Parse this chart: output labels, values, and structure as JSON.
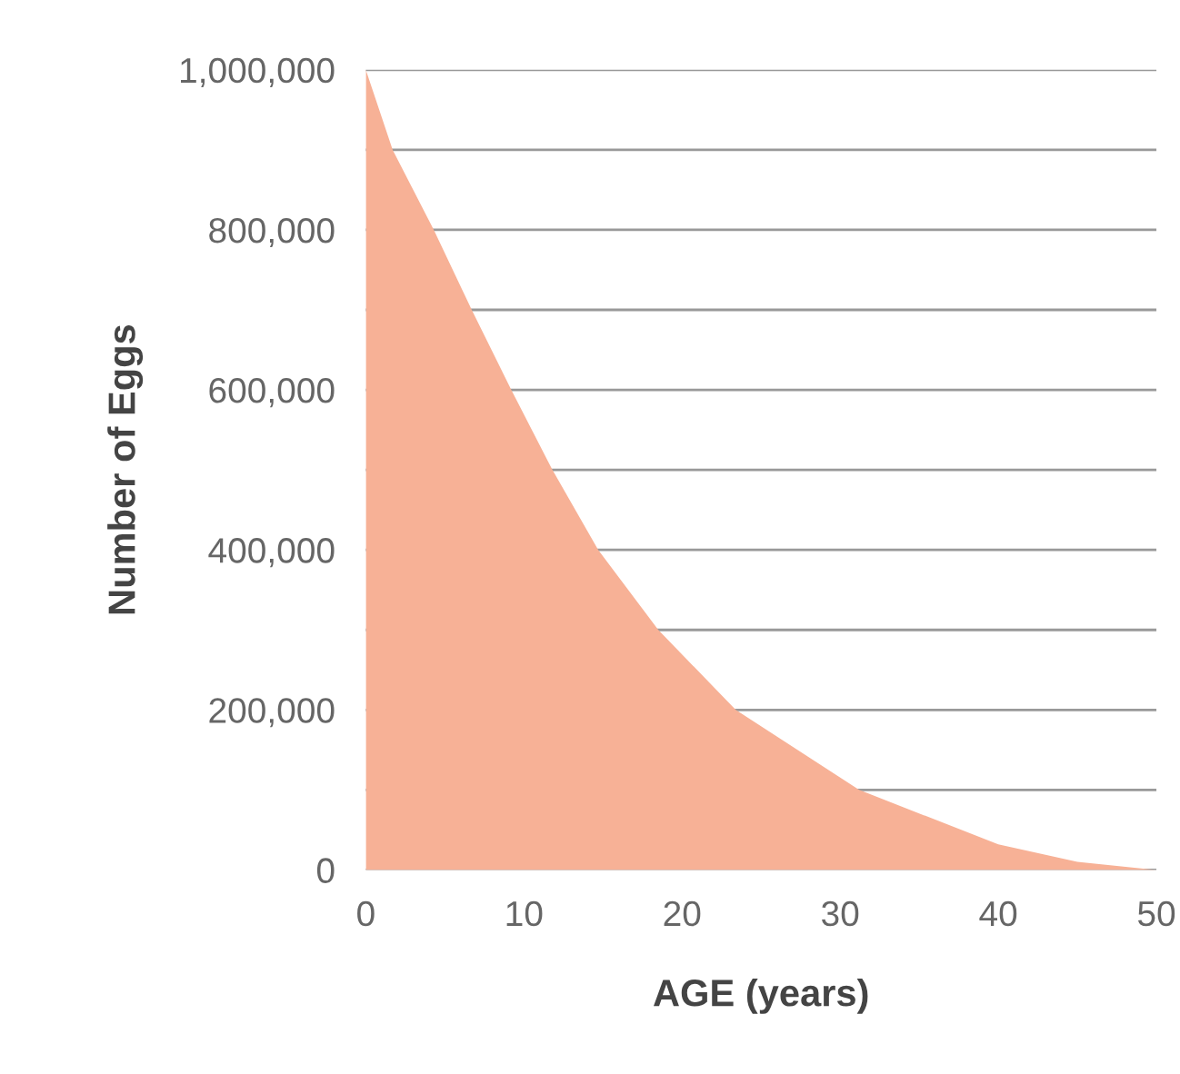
{
  "chart_data": {
    "type": "area",
    "xlabel": "AGE (years)",
    "ylabel": "Number of Eggs",
    "x": [
      0,
      1.7,
      4.3,
      6.7,
      9.2,
      11.8,
      14.7,
      18.5,
      23.4,
      31.2,
      40,
      45,
      50
    ],
    "series": [
      {
        "color": "#f7b196",
        "values": [
          1000000,
          900000,
          800000,
          700000,
          600000,
          500000,
          400000,
          300000,
          200000,
          100000,
          32000,
          10000,
          0
        ]
      }
    ],
    "xlim": [
      0,
      50
    ],
    "xticks": [
      0,
      10,
      20,
      30,
      40,
      50
    ],
    "ylim": [
      0,
      1000000
    ],
    "yticks": [
      {
        "value": 0,
        "label": "0"
      },
      {
        "value": 100000,
        "label": null
      },
      {
        "value": 200000,
        "label": "200,000"
      },
      {
        "value": 300000,
        "label": null
      },
      {
        "value": 400000,
        "label": "400,000"
      },
      {
        "value": 500000,
        "label": null
      },
      {
        "value": 600000,
        "label": "600,000"
      },
      {
        "value": 700000,
        "label": null
      },
      {
        "value": 800000,
        "label": "800,000"
      },
      {
        "value": 900000,
        "label": null
      },
      {
        "value": 1000000,
        "label": "1,000,000"
      }
    ],
    "grid": "y"
  }
}
